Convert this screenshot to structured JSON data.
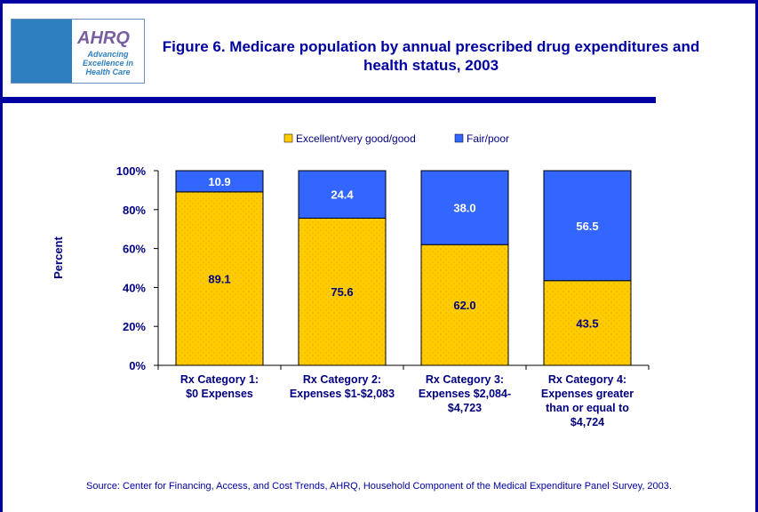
{
  "logo": {
    "text": "AHRQ",
    "tagline": "Advancing Excellence in Health Care"
  },
  "colors": {
    "excellent": "#FFCC00",
    "fair": "#3366FF",
    "text": "#000080",
    "border": "#0000A0"
  },
  "source": "Source: Center for Financing, Access, and Cost Trends, AHRQ, Household Component of the Medical Expenditure Panel Survey, 2003.",
  "chart_data": {
    "type": "bar",
    "stacked": true,
    "title": "Figure 6. Medicare population by annual prescribed drug expenditures and health status, 2003",
    "ylabel": "Percent",
    "xlabel": "",
    "ylim": [
      0,
      100
    ],
    "yticks": [
      "0%",
      "20%",
      "40%",
      "60%",
      "80%",
      "100%"
    ],
    "legend_position": "top",
    "categories": [
      [
        "Rx Category 1:",
        "$0 Expenses"
      ],
      [
        "Rx Category 2:",
        "Expenses $1-$2,083"
      ],
      [
        "Rx Category 3:",
        "Expenses $2,084-",
        "$4,723"
      ],
      [
        "Rx Category 4:",
        "Expenses greater",
        "than or equal to",
        "$4,724"
      ]
    ],
    "series": [
      {
        "name": "Excellent/very good/good",
        "values": [
          89.1,
          75.6,
          62.0,
          43.5
        ],
        "labels": [
          "89.1",
          "75.6",
          "62.0",
          "43.5"
        ]
      },
      {
        "name": "Fair/poor",
        "values": [
          10.9,
          24.4,
          38.0,
          56.5
        ],
        "labels": [
          "10.9",
          "24.4",
          "38.0",
          "56.5"
        ]
      }
    ]
  }
}
